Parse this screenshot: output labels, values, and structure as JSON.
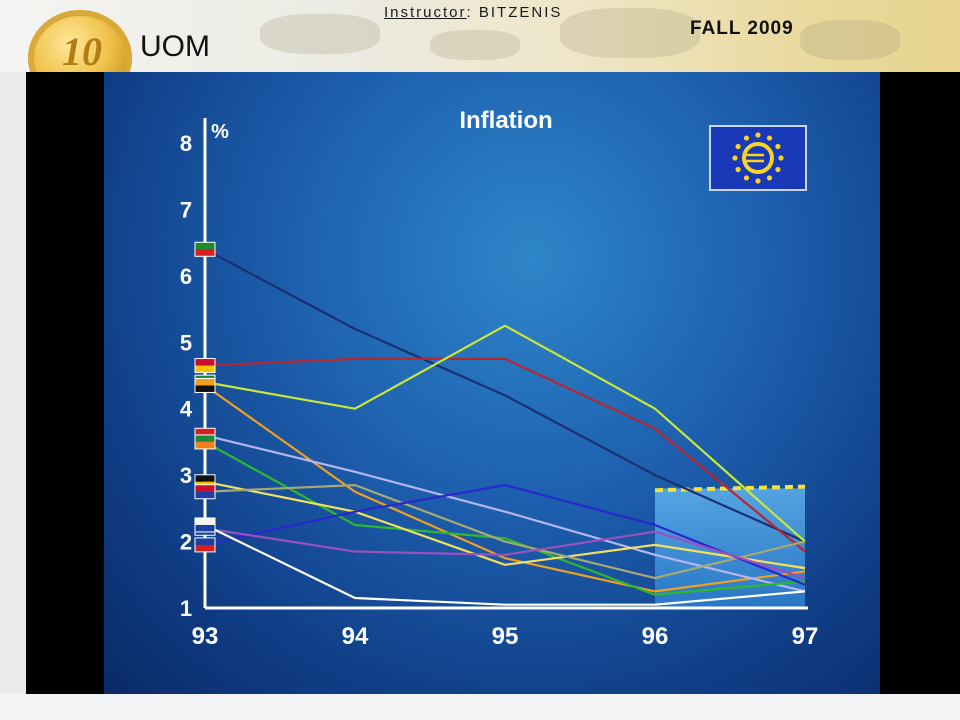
{
  "header": {
    "logo_text": "UOM",
    "coin_text": "10",
    "instructor_label": "Instructor",
    "instructor_name": ": BITZENIS",
    "semester": "FALL 2009"
  },
  "chart_data": {
    "type": "line",
    "title": "Inflation",
    "ylabel": "%",
    "xlabel": "",
    "x": [
      "93",
      "94",
      "95",
      "96",
      "97"
    ],
    "y_ticks": [
      "1",
      "2",
      "3",
      "4",
      "5",
      "6",
      "7",
      "8"
    ],
    "ylim": [
      1,
      8
    ],
    "grid": false,
    "series": [
      {
        "color": "#1b2f73",
        "values": [
          6.4,
          5.2,
          4.2,
          3.0,
          2.0
        ]
      },
      {
        "color": "#b8262f",
        "values": [
          4.65,
          4.75,
          4.75,
          3.7,
          1.85
        ]
      },
      {
        "color": "#c7e83a",
        "values": [
          4.4,
          4.0,
          5.25,
          4.0,
          2.0
        ]
      },
      {
        "color": "#f0a020",
        "values": [
          4.35,
          2.75,
          1.75,
          1.25,
          1.55
        ]
      },
      {
        "color": "#b5b5f0",
        "values": [
          3.6,
          3.05,
          2.45,
          1.8,
          1.25
        ]
      },
      {
        "color": "#2db82d",
        "values": [
          3.5,
          2.25,
          2.05,
          1.2,
          1.4
        ]
      },
      {
        "color": "#f4e060",
        "values": [
          2.9,
          2.45,
          1.65,
          1.95,
          1.6
        ]
      },
      {
        "color": "#a8a872",
        "values": [
          2.75,
          2.85,
          2.0,
          1.45,
          2.0
        ]
      },
      {
        "color": "#2828cc",
        "values": [
          1.95,
          2.45,
          2.85,
          2.25,
          1.35
        ]
      },
      {
        "color": "#9b4fc0",
        "values": [
          2.2,
          1.85,
          1.8,
          2.15,
          1.45
        ]
      },
      {
        "color": "#ffffff",
        "values": [
          2.25,
          1.15,
          1.05,
          1.05,
          1.25
        ]
      }
    ],
    "target_band": {
      "low": 1.0,
      "high": 2.8,
      "from": "96",
      "to": "97"
    }
  }
}
